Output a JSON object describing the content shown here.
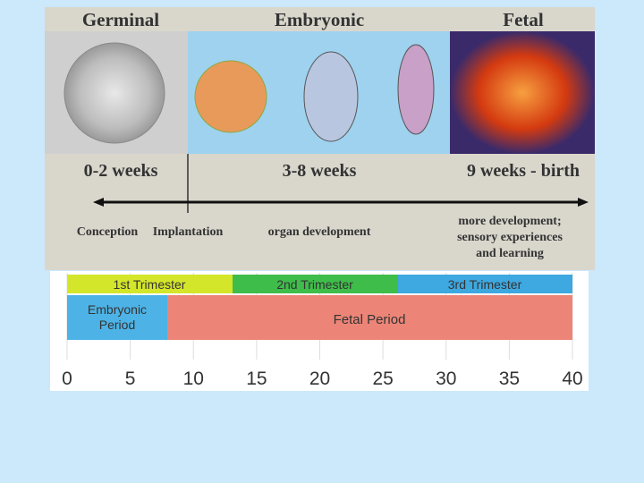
{
  "stages": [
    {
      "title": "Germinal",
      "period": "0-2 weeks"
    },
    {
      "title": "Embryonic",
      "period": "3-8 weeks"
    },
    {
      "title": "Fetal",
      "period": "9 weeks - birth"
    }
  ],
  "timeline_labels": [
    "Conception",
    "Implantation",
    "organ development"
  ],
  "fetal_note": [
    "more development;",
    "sensory experiences",
    "and learning"
  ],
  "trimesters": [
    "1st Trimester",
    "2nd Trimester",
    "3rd Trimester"
  ],
  "periods": [
    "Embryonic Period",
    "Fetal Period"
  ],
  "axis": {
    "ticks": [
      0,
      5,
      10,
      15,
      20,
      25,
      30,
      35,
      40
    ]
  }
}
